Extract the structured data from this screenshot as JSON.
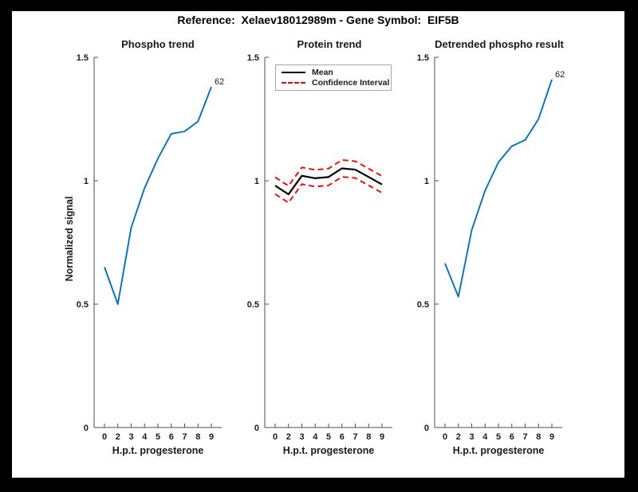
{
  "figure": {
    "title": "Reference:  Xelaev18012989m - Gene Symbol:  EIF5B",
    "background": "#000000",
    "canvas_background": "#ffffff"
  },
  "colors": {
    "line_blue": "#0072BD",
    "mean_black": "#000000",
    "ci_red": "#FF0000",
    "axis": "#4d4d4d",
    "text": "#1a1a1a"
  },
  "chart_data": [
    {
      "type": "line",
      "title": "Phospho trend",
      "xlabel": "H.p.t. progesterone",
      "ylabel": "Normalized signal",
      "x_ticklabels": [
        "0",
        "2",
        "3",
        "4",
        "5",
        "6",
        "7",
        "8",
        "9"
      ],
      "yticks": [
        0,
        0.5,
        1,
        1.5
      ],
      "ylim": [
        0,
        1.5
      ],
      "grid": false,
      "legend": null,
      "series": [
        {
          "name": "phospho-trend",
          "color": "#0072BD",
          "style": "solid",
          "end_label": "62",
          "values": [
            0.65,
            0.5,
            0.81,
            0.97,
            1.09,
            1.19,
            1.2,
            1.24,
            1.38
          ]
        }
      ]
    },
    {
      "type": "line",
      "title": "Protein trend",
      "xlabel": "H.p.t. progesterone",
      "ylabel": "",
      "x_ticklabels": [
        "0",
        "2",
        "3",
        "4",
        "5",
        "6",
        "7",
        "8",
        "9"
      ],
      "yticks": [
        0,
        0.5,
        1,
        1.5
      ],
      "ylim": [
        0,
        1.5
      ],
      "grid": false,
      "legend": {
        "position": "top-left",
        "entries": [
          {
            "label": "Mean",
            "color": "#000000",
            "style": "solid"
          },
          {
            "label": "Confidence Interval",
            "color": "#FF0000",
            "style": "dashed"
          }
        ]
      },
      "series": [
        {
          "name": "confidence-upper",
          "color": "#FF0000",
          "style": "dashed",
          "end_label": null,
          "values": [
            1.014,
            0.979,
            1.054,
            1.044,
            1.049,
            1.084,
            1.079,
            1.049,
            1.019
          ]
        },
        {
          "name": "mean",
          "color": "#000000",
          "style": "solid",
          "end_label": null,
          "values": [
            0.98,
            0.945,
            1.02,
            1.01,
            1.015,
            1.05,
            1.045,
            1.015,
            0.985
          ]
        },
        {
          "name": "confidence-lower",
          "color": "#FF0000",
          "style": "dashed",
          "end_label": null,
          "values": [
            0.946,
            0.911,
            0.986,
            0.976,
            0.981,
            1.016,
            1.011,
            0.981,
            0.951
          ]
        }
      ]
    },
    {
      "type": "line",
      "title": "Detrended phospho result",
      "xlabel": "H.p.t. progesterone",
      "ylabel": "",
      "x_ticklabels": [
        "0",
        "2",
        "3",
        "4",
        "5",
        "6",
        "7",
        "8",
        "9"
      ],
      "yticks": [
        0,
        0.5,
        1,
        1.5
      ],
      "ylim": [
        0,
        1.5
      ],
      "grid": false,
      "legend": null,
      "series": [
        {
          "name": "detrended-phospho",
          "color": "#0072BD",
          "style": "solid",
          "end_label": "62",
          "values": [
            0.665,
            0.53,
            0.8,
            0.96,
            1.075,
            1.14,
            1.165,
            1.25,
            1.41
          ]
        }
      ]
    }
  ]
}
